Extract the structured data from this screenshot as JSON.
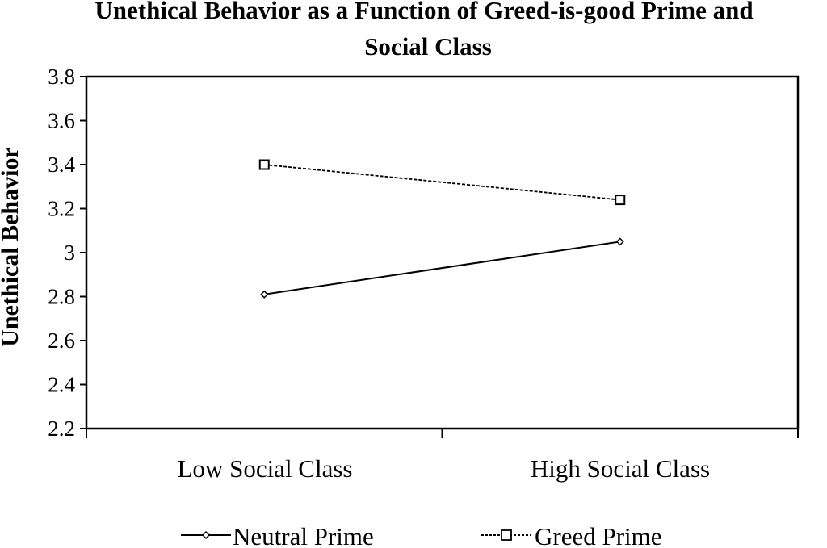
{
  "chart_data": {
    "type": "line",
    "title": "Unethical Behavior as a Function of Greed-is-good Prime and Social Class",
    "title_lines": [
      "Unethical Behavior as a Function of Greed-is-good Prime and",
      "Social Class"
    ],
    "xlabel": "",
    "ylabel": "Unethical Behavior",
    "categories": [
      "Low Social Class",
      "High Social Class"
    ],
    "ylim": [
      2.2,
      3.8
    ],
    "yticks": [
      "2.2",
      "2.4",
      "2.6",
      "2.8",
      "3",
      "3.2",
      "3.4",
      "3.6",
      "3.8"
    ],
    "grid": false,
    "legend_position": "bottom",
    "series": [
      {
        "name": "Neutral Prime",
        "values": [
          2.81,
          3.05
        ],
        "marker": "diamond",
        "line": "solid",
        "color": "#000000"
      },
      {
        "name": "Greed Prime",
        "values": [
          3.4,
          3.24
        ],
        "marker": "square",
        "line": "dashed",
        "color": "#000000"
      }
    ]
  }
}
